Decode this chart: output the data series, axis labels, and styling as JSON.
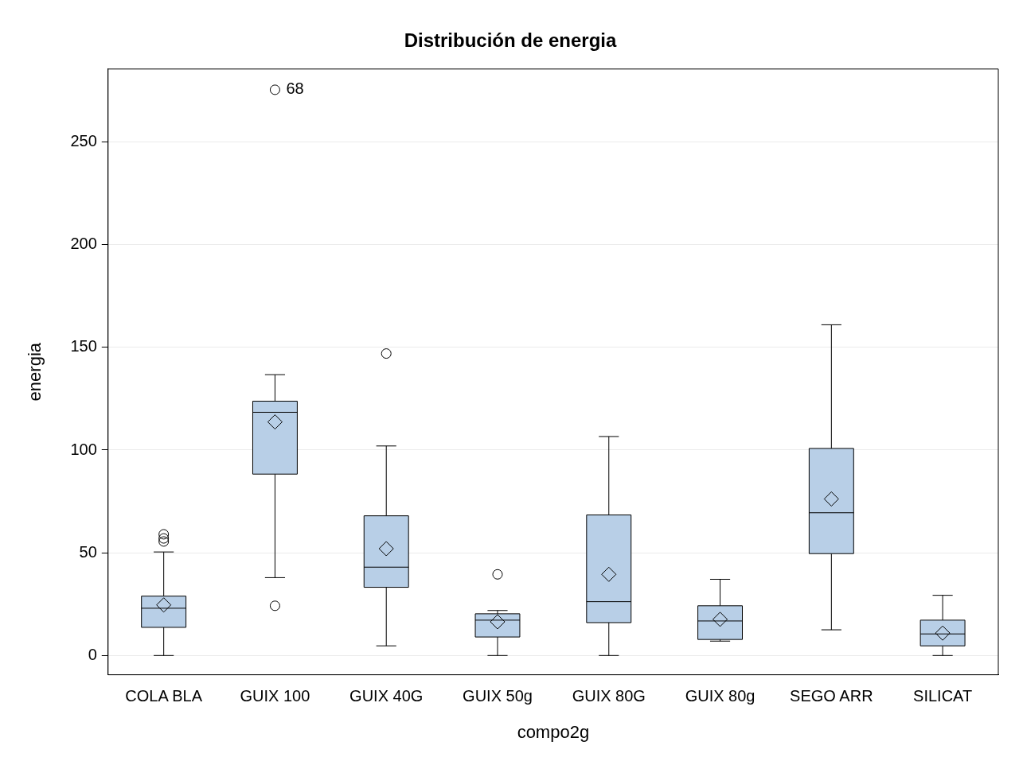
{
  "chart_data": {
    "type": "box",
    "title": "Distribución de energia",
    "xlabel": "compo2g",
    "ylabel": "energia",
    "categories": [
      "COLA BLA",
      "GUIX 100",
      "GUIX 40G",
      "GUIX 50g",
      "GUIX 80G",
      "GUIX 80g",
      "SEGO ARR",
      "SILICAT"
    ],
    "series": [
      {
        "color": "#b8cfe7",
        "boxes": [
          {
            "low": 0,
            "q1": 13.7,
            "median": 23,
            "q3": 28.9,
            "high": 50.4,
            "mean": 24.6,
            "outliers": [
              55.5,
              57,
              59
            ]
          },
          {
            "low": 37.9,
            "q1": 88.3,
            "median": 118.4,
            "q3": 123.8,
            "high": 136.7,
            "mean": 113.7,
            "outliers": [
              24.2,
              275.4
            ]
          },
          {
            "low": 4.7,
            "q1": 33.2,
            "median": 43,
            "q3": 68,
            "high": 102,
            "mean": 52,
            "outliers": [
              147
            ]
          },
          {
            "low": 0,
            "q1": 9,
            "median": 17.2,
            "q3": 20.3,
            "high": 21.9,
            "mean": 16.4,
            "outliers": [
              39.5
            ]
          },
          {
            "low": 0,
            "q1": 16,
            "median": 26.2,
            "q3": 68.4,
            "high": 106.6,
            "mean": 39.5
          },
          {
            "low": 7,
            "q1": 7.8,
            "median": 16.8,
            "q3": 24.2,
            "high": 37.1,
            "mean": 17.6
          },
          {
            "low": 12.5,
            "q1": 49.6,
            "median": 69.5,
            "q3": 100.8,
            "high": 161,
            "mean": 76.2
          },
          {
            "low": 0,
            "q1": 4.7,
            "median": 10.5,
            "q3": 17.2,
            "high": 29.3,
            "mean": 10.9
          }
        ]
      }
    ],
    "annotations": [
      "68"
    ],
    "ylim": [
      -9.4,
      285.5
    ],
    "yticks": [
      0,
      50,
      100,
      150,
      200,
      250
    ],
    "grid": "y",
    "legend": false,
    "marker": "diamond"
  }
}
